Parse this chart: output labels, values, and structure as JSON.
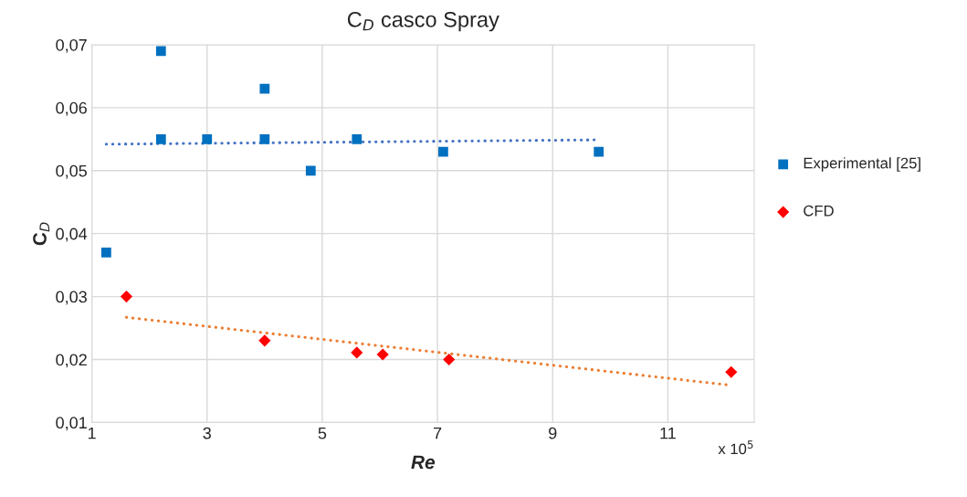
{
  "chart_data": {
    "type": "scatter",
    "title": "C$_{D}$ casco Spray",
    "xlabel": "Re",
    "ylabel": "C$_{D}$",
    "annotations": [
      "x 10$^{5}$"
    ],
    "xlim": [
      1,
      12.5
    ],
    "xticks": [
      1,
      3,
      5,
      7,
      9,
      11
    ],
    "ylim": [
      0.01,
      0.07
    ],
    "yticks": [
      {
        "value": 0.01,
        "label": "0,01"
      },
      {
        "value": 0.02,
        "label": "0,02"
      },
      {
        "value": 0.03,
        "label": "0,03"
      },
      {
        "value": 0.04,
        "label": "0,04"
      },
      {
        "value": 0.05,
        "label": "0,05"
      },
      {
        "value": 0.06,
        "label": "0,06"
      },
      {
        "value": 0.07,
        "label": "0,07"
      }
    ],
    "grid": true,
    "legend": "right",
    "series": [
      {
        "name": "Experimental [25]",
        "marker": "square",
        "color": "#0070c0",
        "x": [
          1.25,
          2.2,
          2.2,
          3,
          4,
          4,
          4.8,
          5.6,
          7.1,
          9.8
        ],
        "values": [
          0.037,
          0.069,
          0.055,
          0.055,
          0.063,
          0.055,
          0.05,
          0.055,
          0.053,
          0.053
        ]
      },
      {
        "name": "CFD",
        "marker": "diamond",
        "color": "#ff0000",
        "x": [
          1.6,
          4,
          5.6,
          6.05,
          7.2,
          12.1
        ],
        "values": [
          0.03,
          0.023,
          0.0211,
          0.0208,
          0.02,
          0.018
        ]
      },
      {
        "type": "line",
        "line_style": "dotted",
        "marker": "none",
        "color": "#4472c4",
        "x": [
          1.25,
          9.8
        ],
        "values": [
          0.0542,
          0.0549
        ]
      },
      {
        "type": "line",
        "line_style": "dotted",
        "marker": "none",
        "color": "#ed7d31",
        "x": [
          1.6,
          12.1
        ],
        "values": [
          0.0267,
          0.0159
        ]
      }
    ]
  }
}
